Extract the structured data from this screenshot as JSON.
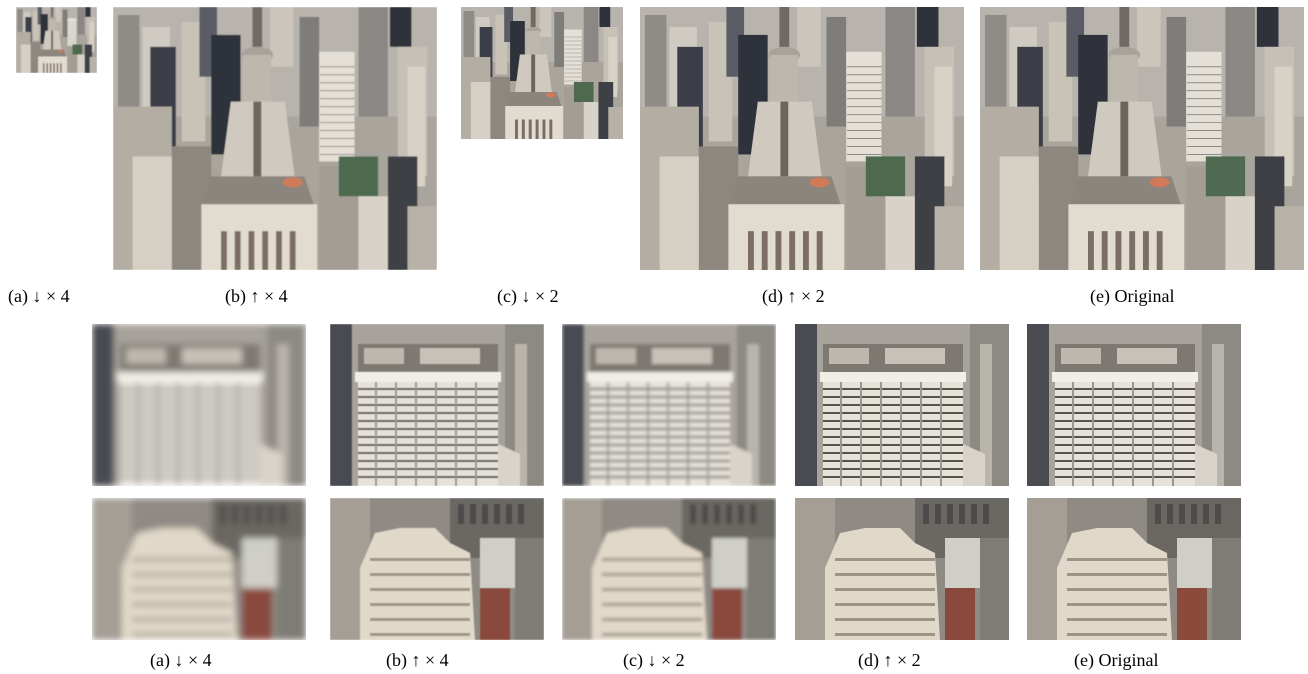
{
  "top_row": {
    "captions": [
      "(a) ↓ × 4",
      "(b) ↑ × 4",
      "(c) ↓ × 2",
      "(d) ↑ × 2",
      "(e) Original"
    ]
  },
  "bottom_rows": {
    "captions": [
      "(a) ↓ × 4",
      "(b) ↑ × 4",
      "(c) ↓ × 2",
      "(d) ↑ × 2",
      "(e) Original"
    ]
  },
  "colors": {
    "sky": "#b9bcbc",
    "buildings_light": "#d8d2c8",
    "buildings_mid": "#9a958e",
    "buildings_dark": "#3d3f45",
    "accent_roof": "#d07a5a",
    "brick": "#8a4a3c"
  }
}
